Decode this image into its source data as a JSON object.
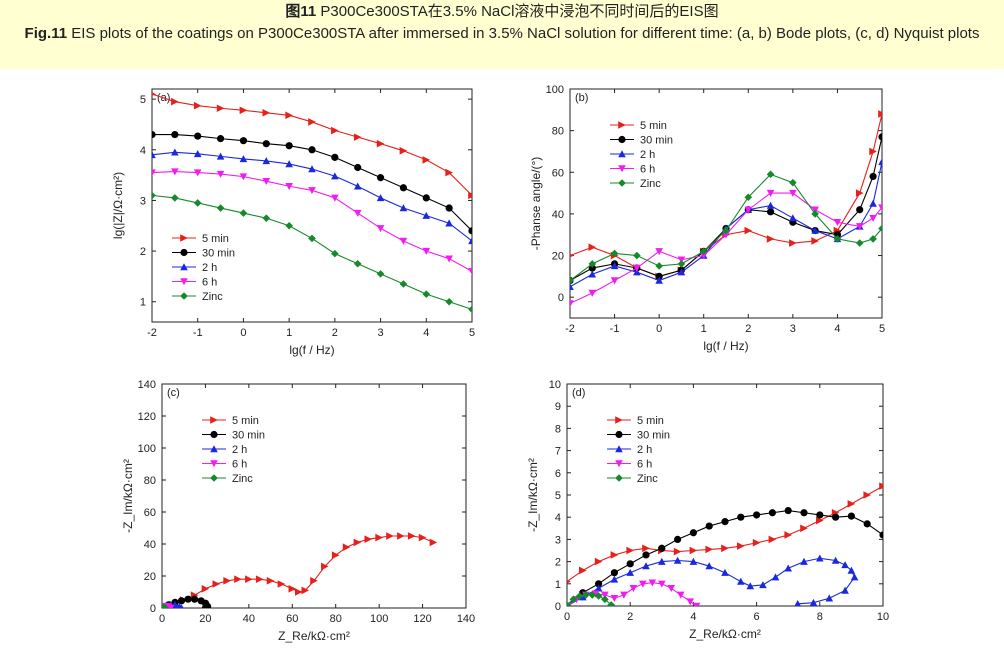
{
  "caption": {
    "cn_label": "图11",
    "cn_text": "P300Ce300STA在3.5% NaCl溶液中浸泡不同时间后的EIS图",
    "en_label": "Fig.11",
    "en_text": "EIS plots of the coatings on P300Ce300STA after immersed in 3.5% NaCl solution for different time: (a, b) Bode plots, (c, d) Nyquist plots"
  },
  "colors": {
    "5 min": "#e8201c",
    "30 min": "#000000",
    "2 h": "#1a28e0",
    "6 h": "#f21cf0",
    "Zinc": "#158a2a"
  },
  "chart_data": [
    {
      "panel": "(a)",
      "type": "line",
      "xlabel": "lg(f / Hz)",
      "ylabel": "lg(|Z|/Ω·cm²)",
      "xlim": [
        -2,
        5
      ],
      "ylim": [
        0.6,
        5.2
      ],
      "xticks": [
        -2,
        -1,
        0,
        1,
        2,
        3,
        4,
        5
      ],
      "yticks": [
        1,
        2,
        3,
        4,
        5
      ],
      "legend_position": "lower-left",
      "series": [
        {
          "name": "5 min",
          "marker": "triangle-right",
          "x": [
            -2,
            -1.5,
            -1,
            -0.5,
            0,
            0.5,
            1,
            1.5,
            2,
            2.5,
            3,
            3.5,
            4,
            4.5,
            5
          ],
          "y": [
            5.1,
            4.95,
            4.87,
            4.82,
            4.78,
            4.73,
            4.68,
            4.55,
            4.38,
            4.25,
            4.12,
            3.98,
            3.8,
            3.55,
            3.1
          ]
        },
        {
          "name": "30 min",
          "marker": "circle",
          "x": [
            -2,
            -1.5,
            -1,
            -0.5,
            0,
            0.5,
            1,
            1.5,
            2,
            2.5,
            3,
            3.5,
            4,
            4.5,
            5
          ],
          "y": [
            4.3,
            4.3,
            4.27,
            4.22,
            4.18,
            4.12,
            4.08,
            4.0,
            3.85,
            3.65,
            3.45,
            3.25,
            3.05,
            2.85,
            2.4
          ]
        },
        {
          "name": "2 h",
          "marker": "triangle-up",
          "x": [
            -2,
            -1.5,
            -1,
            -0.5,
            0,
            0.5,
            1,
            1.5,
            2,
            2.5,
            3,
            3.5,
            4,
            4.5,
            5
          ],
          "y": [
            3.9,
            3.95,
            3.92,
            3.87,
            3.82,
            3.78,
            3.72,
            3.62,
            3.48,
            3.28,
            3.05,
            2.85,
            2.7,
            2.55,
            2.2
          ]
        },
        {
          "name": "6 h",
          "marker": "triangle-down",
          "x": [
            -2,
            -1.5,
            -1,
            -0.5,
            0,
            0.5,
            1,
            1.5,
            2,
            2.5,
            3,
            3.5,
            4,
            4.5,
            5
          ],
          "y": [
            3.55,
            3.57,
            3.55,
            3.52,
            3.47,
            3.38,
            3.28,
            3.2,
            3.05,
            2.75,
            2.45,
            2.2,
            2.0,
            1.85,
            1.6
          ]
        },
        {
          "name": "Zinc",
          "marker": "diamond",
          "x": [
            -2,
            -1.5,
            -1,
            -0.5,
            0,
            0.5,
            1,
            1.5,
            2,
            2.5,
            3,
            3.5,
            4,
            4.5,
            5
          ],
          "y": [
            3.1,
            3.05,
            2.95,
            2.85,
            2.75,
            2.65,
            2.5,
            2.25,
            1.95,
            1.75,
            1.55,
            1.35,
            1.15,
            1.0,
            0.85
          ]
        }
      ]
    },
    {
      "panel": "(b)",
      "type": "line",
      "xlabel": "lg(f / Hz)",
      "ylabel": "-Phanse angle/(°)",
      "xlim": [
        -2,
        5
      ],
      "ylim": [
        -10,
        100
      ],
      "xticks": [
        -2,
        -1,
        0,
        1,
        2,
        3,
        4,
        5
      ],
      "yticks": [
        0,
        20,
        40,
        60,
        80,
        100
      ],
      "legend_position": "upper-left",
      "series": [
        {
          "name": "5 min",
          "marker": "triangle-right",
          "x": [
            -2,
            -1.5,
            -1,
            -0.5,
            0,
            0.5,
            1,
            1.5,
            2,
            2.5,
            3,
            3.5,
            4,
            4.5,
            4.8,
            5
          ],
          "y": [
            20,
            24,
            20,
            14,
            10,
            13,
            22,
            30,
            32,
            28,
            26,
            27,
            32,
            50,
            70,
            88
          ]
        },
        {
          "name": "30 min",
          "marker": "circle",
          "x": [
            -2,
            -1.5,
            -1,
            -0.5,
            0,
            0.5,
            1,
            1.5,
            2,
            2.5,
            3,
            3.5,
            4,
            4.5,
            4.8,
            5
          ],
          "y": [
            8,
            14,
            16,
            14,
            10,
            13,
            22,
            33,
            42,
            41,
            36,
            32,
            30,
            42,
            58,
            77
          ]
        },
        {
          "name": "2 h",
          "marker": "triangle-up",
          "x": [
            -2,
            -1.5,
            -1,
            -0.5,
            0,
            0.5,
            1,
            1.5,
            2,
            2.5,
            3,
            3.5,
            4,
            4.5,
            4.8,
            5
          ],
          "y": [
            5,
            11,
            15,
            12,
            8,
            12,
            20,
            33,
            42,
            44,
            38,
            32,
            28,
            34,
            45,
            65
          ]
        },
        {
          "name": "6 h",
          "marker": "triangle-down",
          "x": [
            -2,
            -1.5,
            -1,
            -0.5,
            0,
            0.5,
            1,
            1.5,
            2,
            2.5,
            3,
            3.5,
            4,
            4.5,
            4.8,
            5
          ],
          "y": [
            -3,
            2,
            8,
            14,
            22,
            18,
            20,
            30,
            42,
            50,
            50,
            42,
            36,
            34,
            38,
            43
          ]
        },
        {
          "name": "Zinc",
          "marker": "diamond",
          "x": [
            -2,
            -1.5,
            -1,
            -0.5,
            0,
            0.5,
            1,
            1.5,
            2,
            2.5,
            3,
            3.5,
            4,
            4.5,
            4.8,
            5
          ],
          "y": [
            8,
            16,
            21,
            20,
            15,
            16,
            22,
            32,
            48,
            59,
            55,
            40,
            28,
            26,
            28,
            33
          ]
        }
      ]
    },
    {
      "panel": "(c)",
      "type": "line",
      "xlabel": "Z_Re/kΩ·cm²",
      "ylabel": "-Z_Im/kΩ·cm²",
      "xlim": [
        0,
        140
      ],
      "ylim": [
        0,
        140
      ],
      "xticks": [
        0,
        20,
        40,
        60,
        80,
        100,
        120,
        140
      ],
      "yticks": [
        0,
        20,
        40,
        60,
        80,
        100,
        120,
        140
      ],
      "legend_position": "upper-left",
      "series": [
        {
          "name": "5 min",
          "marker": "triangle-right",
          "x": [
            0,
            5,
            10,
            15,
            20,
            25,
            30,
            35,
            40,
            45,
            50,
            55,
            60,
            63,
            66,
            70,
            75,
            80,
            85,
            90,
            95,
            100,
            105,
            110,
            115,
            120,
            125
          ],
          "y": [
            0,
            2,
            5,
            8,
            12,
            15,
            17,
            18,
            18,
            18,
            17,
            15,
            12,
            10,
            11,
            17,
            26,
            33,
            38,
            41,
            43,
            44,
            45,
            45,
            45,
            44,
            41
          ]
        },
        {
          "name": "30 min",
          "marker": "circle",
          "x": [
            0,
            3,
            6,
            9,
            12,
            15,
            18,
            20,
            21,
            20
          ],
          "y": [
            0,
            2,
            3.5,
            4.5,
            5.5,
            5.5,
            4.5,
            3,
            1,
            0
          ]
        },
        {
          "name": "2 h",
          "marker": "triangle-up",
          "x": [
            0,
            2,
            4,
            6,
            8,
            9
          ],
          "y": [
            0,
            1.5,
            2,
            2,
            1,
            0
          ]
        },
        {
          "name": "6 h",
          "marker": "triangle-down",
          "x": [
            0,
            1,
            2,
            3,
            4
          ],
          "y": [
            0,
            1,
            1.2,
            0.8,
            0
          ]
        },
        {
          "name": "Zinc",
          "marker": "diamond",
          "x": [
            0,
            0.5,
            1,
            1.5
          ],
          "y": [
            0,
            0.3,
            0.3,
            0
          ]
        }
      ]
    },
    {
      "panel": "(d)",
      "type": "line",
      "xlabel": "Z_Re/kΩ·cm²",
      "ylabel": "-Z_Im/kΩ·cm²",
      "xlim": [
        0,
        10
      ],
      "ylim": [
        0,
        10
      ],
      "xticks": [
        0,
        2,
        4,
        6,
        8,
        10
      ],
      "yticks": [
        0,
        1,
        2,
        3,
        4,
        5,
        6,
        7,
        8,
        9,
        10
      ],
      "legend_position": "upper-left",
      "series": [
        {
          "name": "5 min",
          "marker": "triangle-right",
          "x": [
            0,
            0.5,
            1,
            1.5,
            2,
            2.5,
            3,
            3.5,
            4,
            4.5,
            5,
            5.5,
            6,
            6.5,
            7,
            7.5,
            8,
            8.5,
            9,
            9.5,
            10
          ],
          "y": [
            1.1,
            1.6,
            2.0,
            2.3,
            2.5,
            2.6,
            2.5,
            2.45,
            2.5,
            2.55,
            2.6,
            2.7,
            2.85,
            3.0,
            3.2,
            3.5,
            3.85,
            4.2,
            4.6,
            5.0,
            5.4
          ]
        },
        {
          "name": "30 min",
          "marker": "circle",
          "x": [
            0,
            0.5,
            1,
            1.5,
            2,
            2.5,
            3,
            3.5,
            4,
            4.5,
            5,
            5.5,
            6,
            6.5,
            7,
            7.5,
            8,
            8.5,
            9,
            9.5,
            10
          ],
          "y": [
            0,
            0.6,
            1.0,
            1.5,
            1.9,
            2.3,
            2.6,
            3.0,
            3.3,
            3.6,
            3.8,
            4.0,
            4.1,
            4.2,
            4.3,
            4.2,
            4.1,
            4.0,
            4.05,
            3.7,
            3.2
          ]
        },
        {
          "name": "2 h",
          "marker": "triangle-up",
          "x": [
            0,
            0.5,
            1,
            1.5,
            2,
            2.5,
            3,
            3.5,
            4,
            4.5,
            5,
            5.5,
            5.8,
            6.2,
            6.6,
            7,
            7.5,
            8,
            8.5,
            8.8,
            9,
            9.1,
            8.8,
            8.3,
            7.8,
            7.3
          ],
          "y": [
            0,
            0.4,
            0.8,
            1.2,
            1.5,
            1.8,
            2.0,
            2.05,
            2.0,
            1.8,
            1.5,
            1.1,
            0.9,
            0.95,
            1.3,
            1.7,
            2.0,
            2.15,
            2.05,
            1.85,
            1.6,
            1.3,
            0.7,
            0.35,
            0.15,
            0.1
          ]
        },
        {
          "name": "6 h",
          "marker": "triangle-down",
          "x": [
            0,
            0.3,
            0.6,
            0.9,
            1.2,
            1.5,
            1.8,
            2.1,
            2.4,
            2.7,
            3.0,
            3.3,
            3.6,
            3.9,
            4.1
          ],
          "y": [
            0,
            0.3,
            0.5,
            0.55,
            0.5,
            0.35,
            0.5,
            0.8,
            1.0,
            1.05,
            1.0,
            0.8,
            0.5,
            0.2,
            0
          ]
        },
        {
          "name": "Zinc",
          "marker": "diamond",
          "x": [
            0,
            0.2,
            0.4,
            0.6,
            0.8,
            1.0,
            1.2,
            1.4
          ],
          "y": [
            0.05,
            0.3,
            0.45,
            0.5,
            0.5,
            0.45,
            0.3,
            0.05
          ]
        }
      ]
    }
  ]
}
